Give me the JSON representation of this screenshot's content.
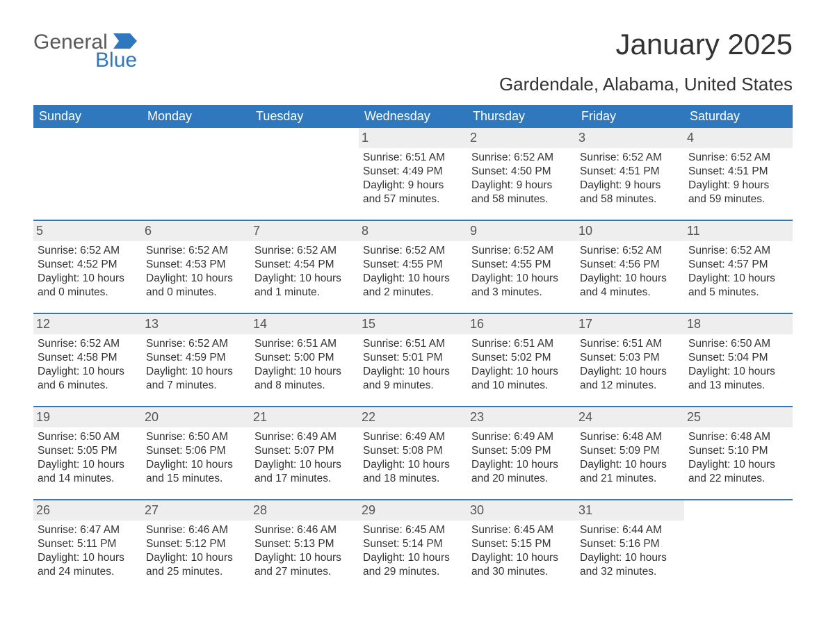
{
  "logo": {
    "word1": "General",
    "word2": "Blue",
    "text_color": "#595959",
    "accent_color": "#2f78bd"
  },
  "title": "January 2025",
  "location": "Gardendale, Alabama, United States",
  "colors": {
    "header_bg": "#2f78bd",
    "header_text": "#ffffff",
    "week_border": "#2f78bd",
    "daynum_bg": "#eeeeee",
    "body_text": "#333333",
    "page_bg": "#ffffff"
  },
  "fonts": {
    "title_size_pt": 32,
    "location_size_pt": 20,
    "dow_size_pt": 14,
    "body_size_pt": 12
  },
  "days_of_week": [
    "Sunday",
    "Monday",
    "Tuesday",
    "Wednesday",
    "Thursday",
    "Friday",
    "Saturday"
  ],
  "weeks": [
    [
      {
        "n": "",
        "sunrise": "",
        "sunset": "",
        "daylight": ""
      },
      {
        "n": "",
        "sunrise": "",
        "sunset": "",
        "daylight": ""
      },
      {
        "n": "",
        "sunrise": "",
        "sunset": "",
        "daylight": ""
      },
      {
        "n": "1",
        "sunrise": "Sunrise: 6:51 AM",
        "sunset": "Sunset: 4:49 PM",
        "daylight": "Daylight: 9 hours and 57 minutes."
      },
      {
        "n": "2",
        "sunrise": "Sunrise: 6:52 AM",
        "sunset": "Sunset: 4:50 PM",
        "daylight": "Daylight: 9 hours and 58 minutes."
      },
      {
        "n": "3",
        "sunrise": "Sunrise: 6:52 AM",
        "sunset": "Sunset: 4:51 PM",
        "daylight": "Daylight: 9 hours and 58 minutes."
      },
      {
        "n": "4",
        "sunrise": "Sunrise: 6:52 AM",
        "sunset": "Sunset: 4:51 PM",
        "daylight": "Daylight: 9 hours and 59 minutes."
      }
    ],
    [
      {
        "n": "5",
        "sunrise": "Sunrise: 6:52 AM",
        "sunset": "Sunset: 4:52 PM",
        "daylight": "Daylight: 10 hours and 0 minutes."
      },
      {
        "n": "6",
        "sunrise": "Sunrise: 6:52 AM",
        "sunset": "Sunset: 4:53 PM",
        "daylight": "Daylight: 10 hours and 0 minutes."
      },
      {
        "n": "7",
        "sunrise": "Sunrise: 6:52 AM",
        "sunset": "Sunset: 4:54 PM",
        "daylight": "Daylight: 10 hours and 1 minute."
      },
      {
        "n": "8",
        "sunrise": "Sunrise: 6:52 AM",
        "sunset": "Sunset: 4:55 PM",
        "daylight": "Daylight: 10 hours and 2 minutes."
      },
      {
        "n": "9",
        "sunrise": "Sunrise: 6:52 AM",
        "sunset": "Sunset: 4:55 PM",
        "daylight": "Daylight: 10 hours and 3 minutes."
      },
      {
        "n": "10",
        "sunrise": "Sunrise: 6:52 AM",
        "sunset": "Sunset: 4:56 PM",
        "daylight": "Daylight: 10 hours and 4 minutes."
      },
      {
        "n": "11",
        "sunrise": "Sunrise: 6:52 AM",
        "sunset": "Sunset: 4:57 PM",
        "daylight": "Daylight: 10 hours and 5 minutes."
      }
    ],
    [
      {
        "n": "12",
        "sunrise": "Sunrise: 6:52 AM",
        "sunset": "Sunset: 4:58 PM",
        "daylight": "Daylight: 10 hours and 6 minutes."
      },
      {
        "n": "13",
        "sunrise": "Sunrise: 6:52 AM",
        "sunset": "Sunset: 4:59 PM",
        "daylight": "Daylight: 10 hours and 7 minutes."
      },
      {
        "n": "14",
        "sunrise": "Sunrise: 6:51 AM",
        "sunset": "Sunset: 5:00 PM",
        "daylight": "Daylight: 10 hours and 8 minutes."
      },
      {
        "n": "15",
        "sunrise": "Sunrise: 6:51 AM",
        "sunset": "Sunset: 5:01 PM",
        "daylight": "Daylight: 10 hours and 9 minutes."
      },
      {
        "n": "16",
        "sunrise": "Sunrise: 6:51 AM",
        "sunset": "Sunset: 5:02 PM",
        "daylight": "Daylight: 10 hours and 10 minutes."
      },
      {
        "n": "17",
        "sunrise": "Sunrise: 6:51 AM",
        "sunset": "Sunset: 5:03 PM",
        "daylight": "Daylight: 10 hours and 12 minutes."
      },
      {
        "n": "18",
        "sunrise": "Sunrise: 6:50 AM",
        "sunset": "Sunset: 5:04 PM",
        "daylight": "Daylight: 10 hours and 13 minutes."
      }
    ],
    [
      {
        "n": "19",
        "sunrise": "Sunrise: 6:50 AM",
        "sunset": "Sunset: 5:05 PM",
        "daylight": "Daylight: 10 hours and 14 minutes."
      },
      {
        "n": "20",
        "sunrise": "Sunrise: 6:50 AM",
        "sunset": "Sunset: 5:06 PM",
        "daylight": "Daylight: 10 hours and 15 minutes."
      },
      {
        "n": "21",
        "sunrise": "Sunrise: 6:49 AM",
        "sunset": "Sunset: 5:07 PM",
        "daylight": "Daylight: 10 hours and 17 minutes."
      },
      {
        "n": "22",
        "sunrise": "Sunrise: 6:49 AM",
        "sunset": "Sunset: 5:08 PM",
        "daylight": "Daylight: 10 hours and 18 minutes."
      },
      {
        "n": "23",
        "sunrise": "Sunrise: 6:49 AM",
        "sunset": "Sunset: 5:09 PM",
        "daylight": "Daylight: 10 hours and 20 minutes."
      },
      {
        "n": "24",
        "sunrise": "Sunrise: 6:48 AM",
        "sunset": "Sunset: 5:09 PM",
        "daylight": "Daylight: 10 hours and 21 minutes."
      },
      {
        "n": "25",
        "sunrise": "Sunrise: 6:48 AM",
        "sunset": "Sunset: 5:10 PM",
        "daylight": "Daylight: 10 hours and 22 minutes."
      }
    ],
    [
      {
        "n": "26",
        "sunrise": "Sunrise: 6:47 AM",
        "sunset": "Sunset: 5:11 PM",
        "daylight": "Daylight: 10 hours and 24 minutes."
      },
      {
        "n": "27",
        "sunrise": "Sunrise: 6:46 AM",
        "sunset": "Sunset: 5:12 PM",
        "daylight": "Daylight: 10 hours and 25 minutes."
      },
      {
        "n": "28",
        "sunrise": "Sunrise: 6:46 AM",
        "sunset": "Sunset: 5:13 PM",
        "daylight": "Daylight: 10 hours and 27 minutes."
      },
      {
        "n": "29",
        "sunrise": "Sunrise: 6:45 AM",
        "sunset": "Sunset: 5:14 PM",
        "daylight": "Daylight: 10 hours and 29 minutes."
      },
      {
        "n": "30",
        "sunrise": "Sunrise: 6:45 AM",
        "sunset": "Sunset: 5:15 PM",
        "daylight": "Daylight: 10 hours and 30 minutes."
      },
      {
        "n": "31",
        "sunrise": "Sunrise: 6:44 AM",
        "sunset": "Sunset: 5:16 PM",
        "daylight": "Daylight: 10 hours and 32 minutes."
      },
      {
        "n": "",
        "sunrise": "",
        "sunset": "",
        "daylight": ""
      }
    ]
  ]
}
